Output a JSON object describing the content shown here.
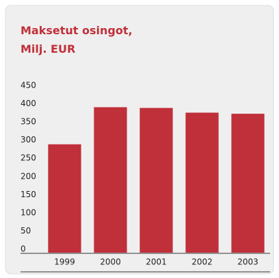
{
  "chart_data": {
    "type": "bar",
    "title": [
      "Maksetut osingot,",
      "Milj. EUR"
    ],
    "categories": [
      "1999",
      "2000",
      "2001",
      "2002",
      "2003"
    ],
    "values": [
      298,
      400,
      398,
      385,
      382
    ],
    "color": "#c0303a",
    "ylim": [
      0,
      450
    ],
    "yticks": [
      0,
      50,
      100,
      150,
      200,
      250,
      300,
      350,
      400,
      450
    ],
    "grid": false
  }
}
